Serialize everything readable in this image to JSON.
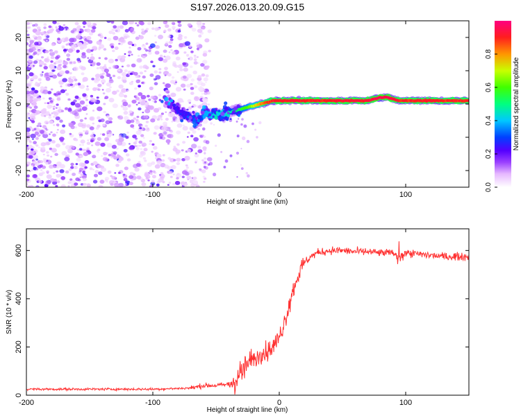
{
  "title": "S197.2026.013.20.09.G15",
  "chart_data": [
    {
      "type": "heatmap",
      "xlabel": "Height of straight line (km)",
      "ylabel": "Frequency (Hz)",
      "xlim": [
        -200,
        150
      ],
      "ylim": [
        -25,
        25
      ],
      "xticks": [
        -200,
        -100,
        0,
        100
      ],
      "yticks": [
        -20,
        -10,
        0,
        10,
        20
      ],
      "colorbar": {
        "label": "Normalized spectral amplitude",
        "range": [
          0,
          1
        ],
        "ticks": [
          "0.0",
          "0.2",
          "0.4",
          "0.6",
          "0.8"
        ],
        "tick_values": [
          0,
          0.2,
          0.4,
          0.6,
          0.8
        ]
      },
      "ridge": {
        "x": [
          -90,
          -85,
          -80,
          -75,
          -70,
          -65,
          -60,
          -55,
          -50,
          -45,
          -40,
          -35,
          -30,
          -25,
          -20,
          -15,
          -10,
          -5,
          0,
          10,
          20,
          30,
          40,
          50,
          60,
          70,
          75,
          80,
          85,
          90,
          95,
          100,
          110,
          120,
          130,
          140,
          150
        ],
        "y": [
          1,
          0,
          -2,
          -3,
          -4,
          -5,
          -3,
          -3,
          -3,
          -3,
          -2.5,
          -2,
          -1.5,
          -1,
          -0.5,
          0,
          0.5,
          1,
          1,
          1,
          1,
          1,
          1,
          1,
          1,
          1,
          1.5,
          2,
          2,
          1.5,
          1,
          1,
          1,
          1,
          1,
          1,
          1
        ],
        "amplitude": [
          0.15,
          0.2,
          0.25,
          0.25,
          0.25,
          0.2,
          0.35,
          0.4,
          0.45,
          0.4,
          0.45,
          0.5,
          0.55,
          0.6,
          0.7,
          0.8,
          0.85,
          0.9,
          0.9,
          0.92,
          0.9,
          0.9,
          0.9,
          0.92,
          0.92,
          0.92,
          0.94,
          0.95,
          0.95,
          0.93,
          0.9,
          0.9,
          0.9,
          0.9,
          0.9,
          0.9,
          0.9
        ]
      }
    },
    {
      "type": "line",
      "xlabel": "Height of straight line (km)",
      "ylabel": "SNR (10 * v/v)",
      "xlim": [
        -200,
        150
      ],
      "ylim": [
        0,
        690
      ],
      "xticks": [
        -200,
        -100,
        0,
        100
      ],
      "yticks": [
        0,
        200,
        400,
        600
      ],
      "series": [
        {
          "name": "SNR",
          "color": "#ff3030",
          "x": [
            -200,
            -150,
            -100,
            -80,
            -70,
            -60,
            -50,
            -40,
            -35,
            -30,
            -25,
            -20,
            -15,
            -10,
            -5,
            0,
            5,
            10,
            15,
            20,
            25,
            30,
            40,
            50,
            60,
            70,
            80,
            90,
            95,
            100,
            110,
            120,
            130,
            140,
            150
          ],
          "y": [
            25,
            25,
            25,
            28,
            30,
            40,
            40,
            45,
            60,
            100,
            130,
            150,
            170,
            180,
            200,
            240,
            320,
            420,
            500,
            550,
            575,
            590,
            600,
            600,
            595,
            595,
            590,
            590,
            570,
            590,
            585,
            580,
            575,
            575,
            575
          ]
        }
      ]
    }
  ]
}
